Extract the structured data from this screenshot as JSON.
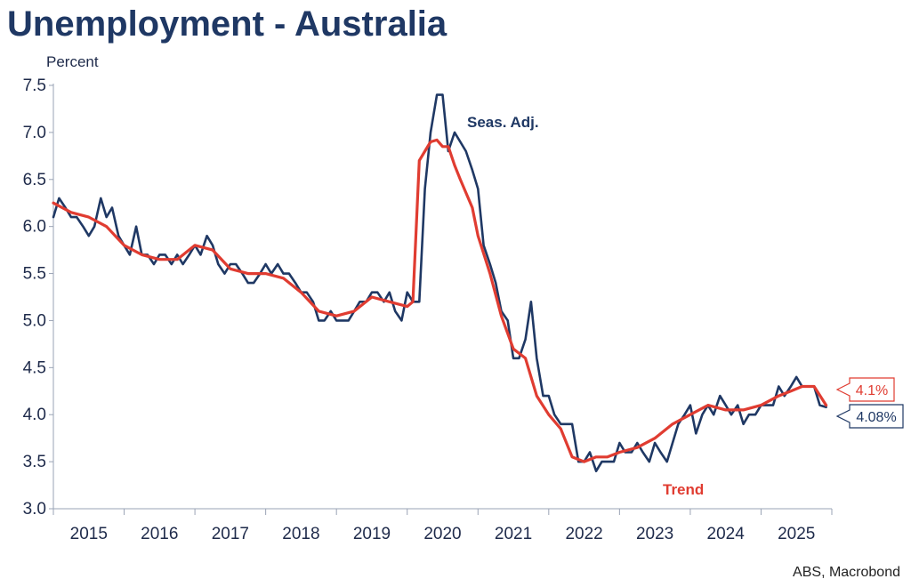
{
  "chart_data": {
    "type": "line",
    "title": "Unemployment - Australia",
    "ylabel": "Percent",
    "source": "ABS, Macrobond",
    "ylim": [
      3.0,
      7.5
    ],
    "yticks": [
      "3.0",
      "3.5",
      "4.0",
      "4.5",
      "5.0",
      "5.5",
      "6.0",
      "6.5",
      "7.0",
      "7.5"
    ],
    "xlim": [
      2015.0,
      2026.0
    ],
    "xtick_labels": [
      "2015",
      "2016",
      "2017",
      "2018",
      "2019",
      "2020",
      "2021",
      "2022",
      "2023",
      "2024",
      "2025"
    ],
    "grid": false,
    "series": [
      {
        "name": "Seas. Adj.",
        "color": "#1f3864",
        "last_value_label": "4.08%",
        "x": [
          2015.0,
          2015.08,
          2015.17,
          2015.25,
          2015.33,
          2015.42,
          2015.5,
          2015.58,
          2015.67,
          2015.75,
          2015.83,
          2015.92,
          2016.0,
          2016.08,
          2016.17,
          2016.25,
          2016.33,
          2016.42,
          2016.5,
          2016.58,
          2016.67,
          2016.75,
          2016.83,
          2016.92,
          2017.0,
          2017.08,
          2017.17,
          2017.25,
          2017.33,
          2017.42,
          2017.5,
          2017.58,
          2017.67,
          2017.75,
          2017.83,
          2017.92,
          2018.0,
          2018.08,
          2018.17,
          2018.25,
          2018.33,
          2018.42,
          2018.5,
          2018.58,
          2018.67,
          2018.75,
          2018.83,
          2018.92,
          2019.0,
          2019.08,
          2019.17,
          2019.25,
          2019.33,
          2019.42,
          2019.5,
          2019.58,
          2019.67,
          2019.75,
          2019.83,
          2019.92,
          2020.0,
          2020.08,
          2020.17,
          2020.25,
          2020.33,
          2020.42,
          2020.5,
          2020.58,
          2020.67,
          2020.75,
          2020.83,
          2020.92,
          2021.0,
          2021.08,
          2021.17,
          2021.25,
          2021.33,
          2021.42,
          2021.5,
          2021.58,
          2021.67,
          2021.75,
          2021.83,
          2021.92,
          2022.0,
          2022.08,
          2022.17,
          2022.25,
          2022.33,
          2022.42,
          2022.5,
          2022.58,
          2022.67,
          2022.75,
          2022.83,
          2022.92,
          2023.0,
          2023.08,
          2023.17,
          2023.25,
          2023.33,
          2023.42,
          2023.5,
          2023.58,
          2023.67,
          2023.75,
          2023.83,
          2023.92,
          2024.0,
          2024.08,
          2024.17,
          2024.25,
          2024.33,
          2024.42,
          2024.5,
          2024.58,
          2024.67,
          2024.75,
          2024.83,
          2024.92,
          2025.0,
          2025.08,
          2025.17,
          2025.25,
          2025.33,
          2025.42,
          2025.5,
          2025.58,
          2025.67,
          2025.75,
          2025.83,
          2025.92
        ],
        "y": [
          6.1,
          6.3,
          6.2,
          6.1,
          6.1,
          6.0,
          5.9,
          6.0,
          6.3,
          6.1,
          6.2,
          5.9,
          5.8,
          5.7,
          6.0,
          5.7,
          5.7,
          5.6,
          5.7,
          5.7,
          5.6,
          5.7,
          5.6,
          5.7,
          5.8,
          5.7,
          5.9,
          5.8,
          5.6,
          5.5,
          5.6,
          5.6,
          5.5,
          5.4,
          5.4,
          5.5,
          5.6,
          5.5,
          5.6,
          5.5,
          5.5,
          5.4,
          5.3,
          5.3,
          5.2,
          5.0,
          5.0,
          5.1,
          5.0,
          5.0,
          5.0,
          5.1,
          5.2,
          5.2,
          5.3,
          5.3,
          5.2,
          5.3,
          5.1,
          5.0,
          5.3,
          5.2,
          5.2,
          6.4,
          7.0,
          7.4,
          7.4,
          6.8,
          7.0,
          6.9,
          6.8,
          6.6,
          6.4,
          5.8,
          5.6,
          5.4,
          5.1,
          5.0,
          4.6,
          4.6,
          4.8,
          5.2,
          4.6,
          4.2,
          4.2,
          4.0,
          3.9,
          3.9,
          3.9,
          3.5,
          3.5,
          3.6,
          3.4,
          3.5,
          3.5,
          3.5,
          3.7,
          3.6,
          3.6,
          3.7,
          3.6,
          3.5,
          3.7,
          3.6,
          3.5,
          3.7,
          3.9,
          4.0,
          4.1,
          3.8,
          4.0,
          4.1,
          4.0,
          4.2,
          4.1,
          4.0,
          4.1,
          3.9,
          4.0,
          4.0,
          4.1,
          4.1,
          4.1,
          4.3,
          4.2,
          4.3,
          4.4,
          4.3,
          4.3,
          4.3,
          4.1,
          4.08
        ]
      },
      {
        "name": "Trend",
        "color": "#e03c31",
        "last_value_label": "4.1%",
        "x": [
          2015.0,
          2015.25,
          2015.5,
          2015.75,
          2016.0,
          2016.25,
          2016.5,
          2016.75,
          2017.0,
          2017.25,
          2017.5,
          2017.75,
          2018.0,
          2018.25,
          2018.5,
          2018.75,
          2019.0,
          2019.25,
          2019.5,
          2019.75,
          2020.0,
          2020.08,
          2020.17,
          2020.25,
          2020.33,
          2020.42,
          2020.5,
          2020.58,
          2020.67,
          2020.75,
          2020.92,
          2021.0,
          2021.17,
          2021.33,
          2021.5,
          2021.67,
          2021.83,
          2022.0,
          2022.17,
          2022.33,
          2022.5,
          2022.67,
          2022.83,
          2023.0,
          2023.25,
          2023.5,
          2023.75,
          2024.0,
          2024.25,
          2024.5,
          2024.75,
          2025.0,
          2025.25,
          2025.42,
          2025.58,
          2025.75,
          2025.92
        ],
        "y": [
          6.25,
          6.15,
          6.1,
          6.0,
          5.8,
          5.7,
          5.65,
          5.65,
          5.8,
          5.75,
          5.55,
          5.5,
          5.5,
          5.45,
          5.3,
          5.1,
          5.05,
          5.1,
          5.25,
          5.2,
          5.15,
          5.2,
          6.7,
          6.8,
          6.9,
          6.92,
          6.85,
          6.85,
          6.65,
          6.5,
          6.2,
          5.9,
          5.5,
          5.05,
          4.7,
          4.6,
          4.2,
          4.0,
          3.85,
          3.55,
          3.5,
          3.55,
          3.55,
          3.6,
          3.65,
          3.75,
          3.9,
          4.0,
          4.1,
          4.05,
          4.05,
          4.1,
          4.2,
          4.25,
          4.3,
          4.3,
          4.1
        ]
      }
    ]
  }
}
